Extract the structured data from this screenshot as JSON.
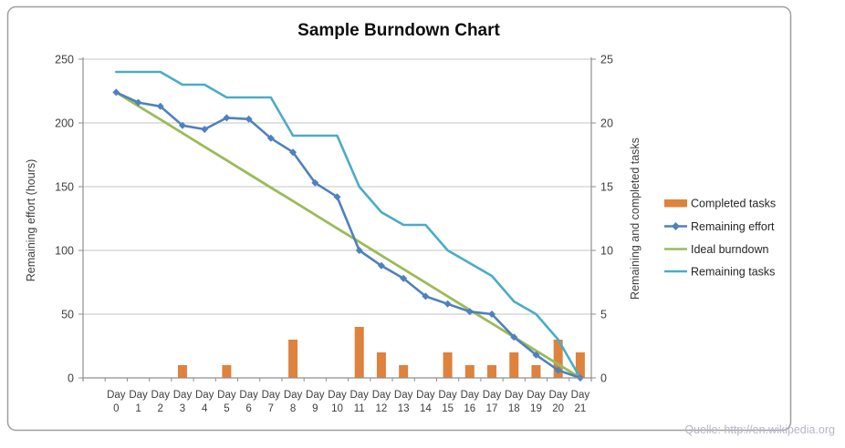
{
  "title": "Sample Burndown Chart",
  "source_note": "Quelle: http://en.wikipedia.org",
  "axes": {
    "left_title": "Remaining effort (hours)",
    "right_title": "Remaining and  completed tasks",
    "left_ticks": [
      0,
      50,
      100,
      150,
      200,
      250
    ],
    "right_ticks": [
      0,
      5,
      10,
      15,
      20,
      25
    ],
    "x_label_prefix": "Day"
  },
  "legend": {
    "position": "right",
    "items": [
      {
        "label": "Completed tasks",
        "swatch": "bar",
        "color": "#de823d"
      },
      {
        "label": "Remaining effort",
        "swatch": "line-diamond",
        "color": "#4f81bd"
      },
      {
        "label": "Ideal burndown",
        "swatch": "line",
        "color": "#9bbb59"
      },
      {
        "label": "Remaining tasks",
        "swatch": "line",
        "color": "#4bacc6"
      }
    ]
  },
  "chart_data": {
    "type": "combo-bar-line",
    "x": [
      0,
      1,
      2,
      3,
      4,
      5,
      6,
      7,
      8,
      9,
      10,
      11,
      12,
      13,
      14,
      15,
      16,
      17,
      18,
      19,
      20,
      21
    ],
    "left_ylim": [
      0,
      250
    ],
    "right_ylim": [
      0,
      25
    ],
    "grid": true,
    "series": [
      {
        "name": "Completed tasks",
        "type": "bar",
        "axis": "right",
        "color": "#de823d",
        "values": [
          0,
          0,
          0,
          1,
          0,
          1,
          0,
          0,
          3,
          0,
          0,
          4,
          2,
          1,
          0,
          2,
          1,
          1,
          2,
          1,
          3,
          2
        ]
      },
      {
        "name": "Remaining effort",
        "type": "line",
        "marker": "diamond",
        "axis": "left",
        "color": "#4f81bd",
        "values": [
          224,
          216,
          213,
          198,
          195,
          204,
          203,
          188,
          177,
          153,
          142,
          100,
          88,
          78,
          64,
          58,
          52,
          50,
          32,
          18,
          6,
          0
        ]
      },
      {
        "name": "Ideal burndown",
        "type": "line",
        "axis": "left",
        "color": "#9bbb59",
        "values": [
          224,
          213.3,
          202.7,
          192,
          181.3,
          170.7,
          160,
          149.3,
          138.7,
          128,
          117.3,
          106.7,
          96,
          85.3,
          74.7,
          64,
          53.3,
          42.7,
          32,
          21.3,
          10.7,
          0
        ]
      },
      {
        "name": "Remaining tasks",
        "type": "line",
        "axis": "right",
        "color": "#4bacc6",
        "values": [
          24,
          24,
          24,
          23,
          23,
          22,
          22,
          22,
          19,
          19,
          19,
          15,
          13,
          12,
          12,
          10,
          9,
          8,
          6,
          5,
          3,
          0
        ]
      }
    ]
  }
}
